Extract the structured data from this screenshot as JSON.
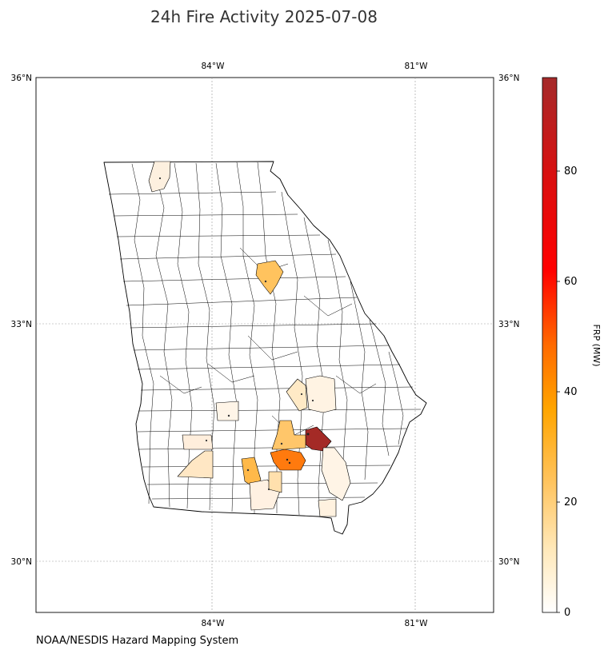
{
  "title": "24h Fire Activity 2025-07-08",
  "source": "NOAA/NESDIS Hazard Mapping System",
  "top_ticks": [
    "84°W",
    "81°W"
  ],
  "bottom_ticks": [
    "84°W",
    "81°W"
  ],
  "left_ticks": [
    "36°N",
    "33°N",
    "30°N"
  ],
  "right_ticks": [
    "36°N",
    "33°N",
    "30°N"
  ],
  "colorbar": {
    "label": "FRP (MW)",
    "ticks": [
      "0",
      "20",
      "40",
      "60",
      "80"
    ],
    "range": [
      0,
      97
    ],
    "colors": [
      "#ffffff",
      "#ffe8b8",
      "#ffc25a",
      "#ffa500",
      "#ff6a00",
      "#ff0000",
      "#d81010",
      "#a52a2a"
    ]
  },
  "map_data": {
    "extent": {
      "lon": [
        -86.6,
        -79.8
      ],
      "lat": [
        29.6,
        36.0
      ]
    },
    "highlighted_counties": [
      {
        "region": "northwest",
        "frp": 3
      },
      {
        "region": "northeast-central",
        "frp": 18
      },
      {
        "region": "east-central-a",
        "frp": 8
      },
      {
        "region": "east-central-b",
        "frp": 6
      },
      {
        "region": "south-central-a",
        "frp": 4
      },
      {
        "region": "southwest-a",
        "frp": 5
      },
      {
        "region": "southwest-b",
        "frp": 8
      },
      {
        "region": "south-a",
        "frp": 22
      },
      {
        "region": "south-b",
        "frp": 35
      },
      {
        "region": "south-c",
        "frp": 95
      },
      {
        "region": "south-d",
        "frp": 18
      },
      {
        "region": "south-e",
        "frp": 4
      },
      {
        "region": "south-f",
        "frp": 6
      },
      {
        "region": "south-g",
        "frp": 20
      },
      {
        "region": "southeast",
        "frp": 4
      }
    ]
  }
}
